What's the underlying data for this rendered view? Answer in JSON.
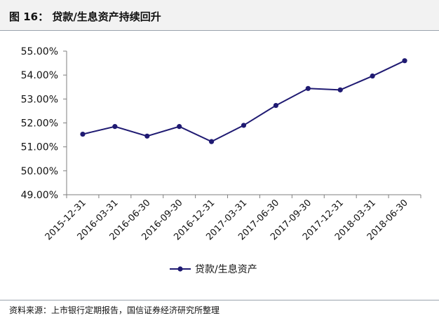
{
  "header": {
    "title": "图 16：  贷款/生息资产持续回升"
  },
  "footer": {
    "source": "资料来源：上市银行定期报告，国信证券经济研究所整理"
  },
  "colors": {
    "series": "#1f1a72",
    "axis": "#7f7f7f",
    "header_bg": "#f2f2f2",
    "rule": "#9aa3ad"
  },
  "chart_data": {
    "type": "line",
    "title": "",
    "xlabel": "",
    "ylabel": "",
    "categories": [
      "2015-12-31",
      "2016-03-31",
      "2016-06-30",
      "2016-09-30",
      "2016-12-31",
      "2017-03-31",
      "2017-06-30",
      "2017-09-30",
      "2017-12-31",
      "2018-03-31",
      "2018-06-30"
    ],
    "series": [
      {
        "name": "贷款/生息资产",
        "values": [
          51.53,
          51.85,
          51.45,
          51.85,
          51.22,
          51.9,
          52.73,
          53.44,
          53.38,
          53.96,
          54.6
        ]
      }
    ],
    "ylim": [
      49.0,
      55.0
    ],
    "yticks": [
      "49.00%",
      "50.00%",
      "51.00%",
      "52.00%",
      "53.00%",
      "54.00%",
      "55.00%"
    ],
    "grid": false,
    "legend": "bottom-center"
  }
}
